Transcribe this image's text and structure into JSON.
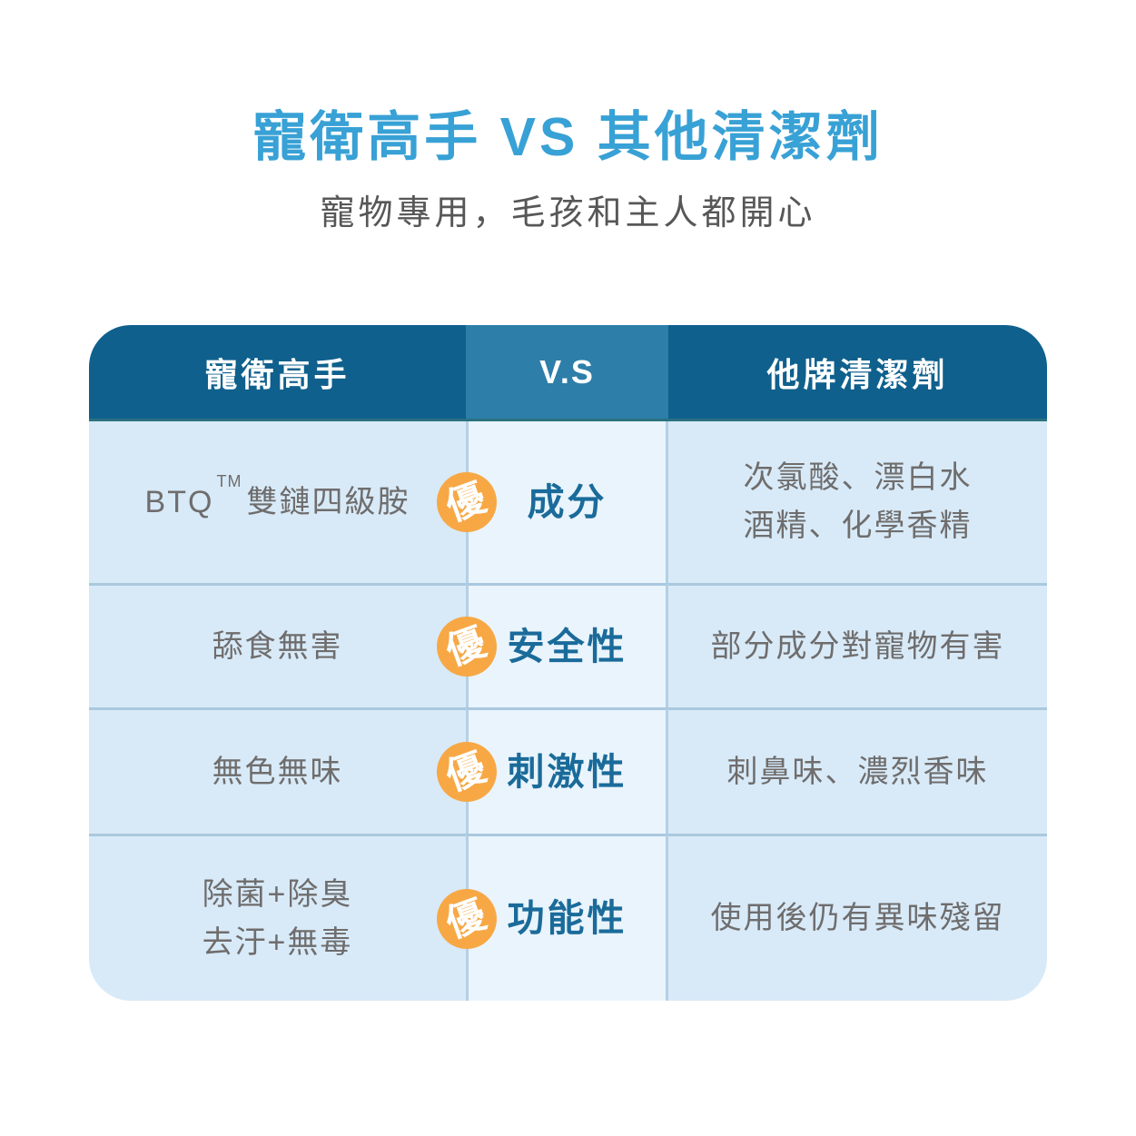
{
  "page": {
    "title": "寵衛高手 VS 其他清潔劑",
    "subtitle": "寵物專用，毛孩和主人都開心"
  },
  "colors": {
    "title_blue": "#38a1d5",
    "subtitle_gray": "#585757",
    "header_dark_blue": "#0f608d",
    "header_mid_blue": "#2d7ea9",
    "cell_side_bg": "#d8eaf8",
    "cell_mid_bg": "#eaf4fc",
    "divider_line": "#aac8de",
    "badge_orange": "#f7a845",
    "feature_blue": "#1a6b9a",
    "body_text_gray": "#6f6d6d"
  },
  "table": {
    "header": {
      "left": "寵衛高手",
      "middle": "V.S",
      "right": "他牌清潔劑"
    },
    "badge_label": "優",
    "rows": [
      {
        "left_prefix": "BTQ",
        "left_tm": "TM",
        "left_suffix": "雙鏈四級胺",
        "feature": "成分",
        "right_lines": [
          "次氯酸、漂白水",
          "酒精、化學香精"
        ]
      },
      {
        "left_lines": [
          "舔食無害"
        ],
        "feature": "安全性",
        "right_lines": [
          "部分成分對寵物有害"
        ]
      },
      {
        "left_lines": [
          "無色無味"
        ],
        "feature": "刺激性",
        "right_lines": [
          "刺鼻味、濃烈香味"
        ]
      },
      {
        "left_lines": [
          "除菌+除臭",
          "去汙+無毒"
        ],
        "feature": "功能性",
        "right_lines": [
          "使用後仍有異味殘留"
        ]
      }
    ]
  }
}
